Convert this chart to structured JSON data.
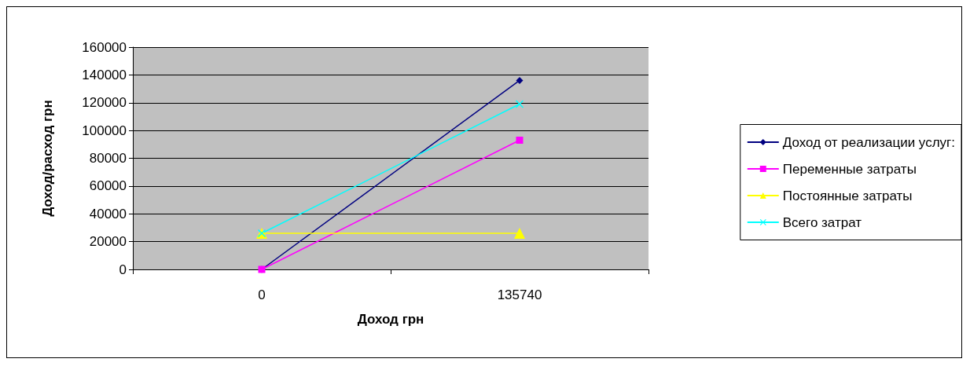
{
  "chart_data": {
    "type": "line",
    "xlabel": "Доход грн",
    "ylabel": "Доход/расход грн",
    "categories": [
      "0",
      "135740"
    ],
    "series": [
      {
        "name": "Доход от реализации услуг:",
        "color": "#000080",
        "marker": "diamond",
        "values": [
          0,
          136000
        ]
      },
      {
        "name": "Переменные затраты",
        "color": "#ff00ff",
        "marker": "square",
        "values": [
          0,
          93000
        ]
      },
      {
        "name": "Постоянные затраты",
        "color": "#ffff00",
        "marker": "triangle",
        "values": [
          26000,
          26000
        ]
      },
      {
        "name": "Всего затрат",
        "color": "#00ffff",
        "marker": "cross",
        "values": [
          26000,
          119000
        ]
      }
    ],
    "ylim": [
      0,
      160000
    ],
    "yticks": [
      0,
      20000,
      40000,
      60000,
      80000,
      100000,
      120000,
      140000,
      160000
    ],
    "grid": "y",
    "legend": "right"
  }
}
